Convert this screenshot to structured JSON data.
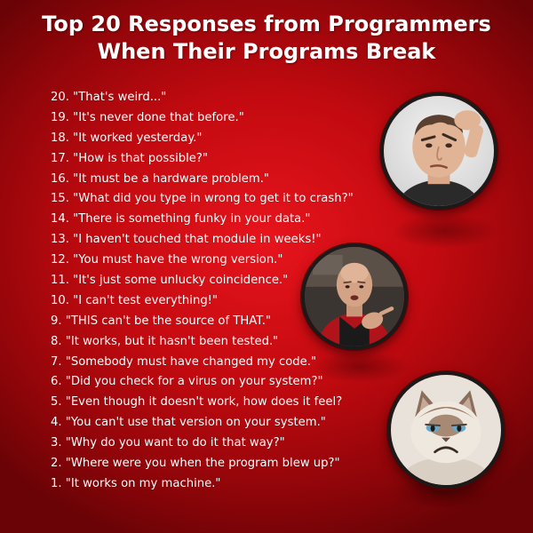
{
  "title": {
    "line1": "Top 20 Responses from Programmers",
    "line2": "When Their Programs Break"
  },
  "responses": [
    "20. \"That's weird...\"",
    "19. \"It's never done that before.\"",
    "18. \"It worked yesterday.\"",
    "17. \"How is that possible?\"",
    "16. \"It must be a hardware problem.\"",
    "15. \"What did you type in wrong to get it to crash?\"",
    "14. \"There is something funky in your data.\"",
    "13. \"I haven't touched that module in weeks!\"",
    "12. \"You must have the wrong version.\"",
    "11. \"It's just some unlucky coincidence.\"",
    "10. \"I can't test everything!\"",
    "9. \"THIS can't be the source of THAT.\"",
    "8. \"It works, but it hasn't been tested.\"",
    "7. \"Somebody must have changed my code.\"",
    "6. \"Did you check for a virus on your system?\"",
    "5. \"Even though it doesn't work, how does it feel?",
    "4. \"You can't use that version on your system.\"",
    "3. \"Why do you want to do it that way?\"",
    "2. \"Where were you when the program blew up?\"",
    "1. \"It works on my machine.\""
  ],
  "images": [
    {
      "icon": "puzzled-man-portrait"
    },
    {
      "icon": "starship-captain-portrait"
    },
    {
      "icon": "grumpy-cat-portrait"
    }
  ],
  "colors": {
    "background": "#c20a10",
    "text": "#ffffff",
    "frame": "#1a1a1a"
  }
}
